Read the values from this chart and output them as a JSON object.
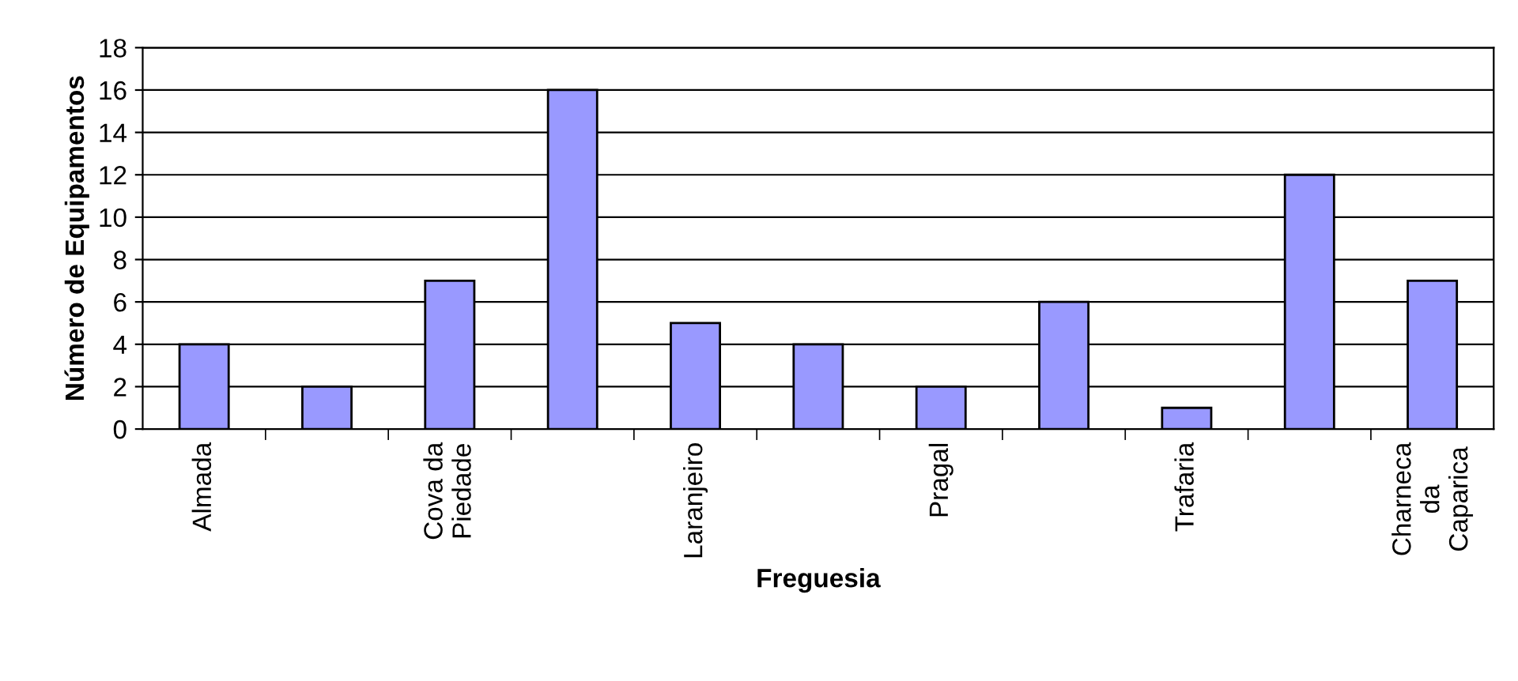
{
  "chart_data": {
    "type": "bar",
    "xlabel": "Freguesia",
    "ylabel": "Número de Equipamentos",
    "categories": [
      "Almada",
      null,
      "Cova da\nPiedade",
      null,
      "Laranjeiro",
      null,
      "Pragal",
      null,
      "Trafaria",
      null,
      "Charneca\nda\nCaparica"
    ],
    "values": [
      4,
      2,
      7,
      16,
      5,
      4,
      2,
      6,
      1,
      12,
      7
    ],
    "color": "#9999ff",
    "ylim": [
      0,
      18
    ],
    "yticks": [
      0,
      2,
      4,
      6,
      8,
      10,
      12,
      14,
      16,
      18
    ],
    "grid": "y",
    "legend": false
  }
}
